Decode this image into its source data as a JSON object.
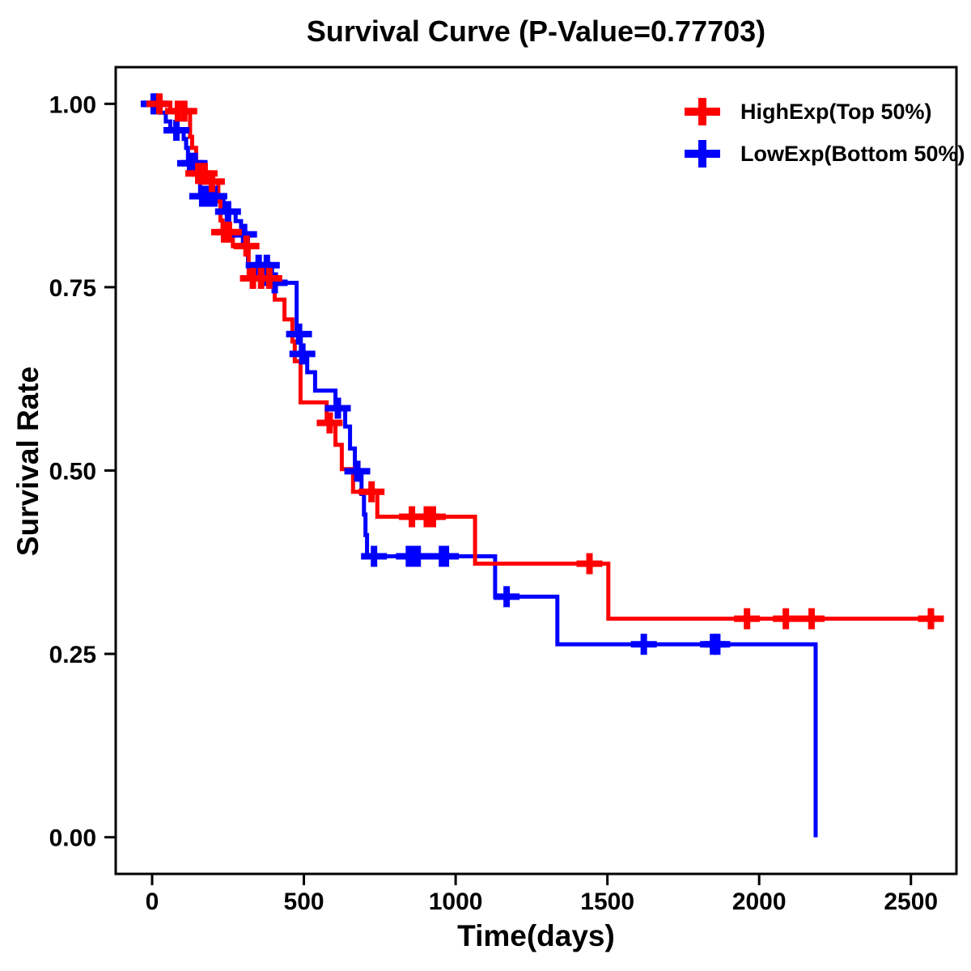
{
  "title": "Survival Curve (P-Value=0.77703)",
  "axes": {
    "x": {
      "label": "Time(days)",
      "tick_labels": [
        "0",
        "500",
        "1000",
        "1500",
        "2000",
        "2500"
      ],
      "tick_values": [
        0,
        500,
        1000,
        1500,
        2000,
        2500
      ]
    },
    "y": {
      "label": "Survival Rate",
      "tick_labels": [
        "0.00",
        "0.25",
        "0.50",
        "0.75",
        "1.00"
      ],
      "tick_values": [
        0.0,
        0.25,
        0.5,
        0.75,
        1.0
      ]
    }
  },
  "legend": {
    "items": [
      {
        "label": "HighExp(Top 50%)",
        "color": "#FF0000",
        "marker": "plus-icon"
      },
      {
        "label": "LowExp(Bottom 50%)",
        "color": "#0000FF",
        "marker": "plus-icon"
      }
    ]
  },
  "colors": {
    "background": "#FFFFFF",
    "axis": "#000000",
    "high_exp": "#FF0000",
    "low_exp": "#0000FF"
  },
  "chart_data": {
    "type": "line",
    "subtype": "kaplan-meier-survival-step",
    "title": "Survival Curve (P-Value=0.77703)",
    "p_value": 0.77703,
    "xlabel": "Time(days)",
    "ylabel": "Survival Rate",
    "xlim": [
      -120,
      2650
    ],
    "ylim": [
      -0.05,
      1.05
    ],
    "x_ticks": [
      0,
      500,
      1000,
      1500,
      2000,
      2500
    ],
    "y_ticks": [
      0.0,
      0.25,
      0.5,
      0.75,
      1.0
    ],
    "grid": false,
    "legend_position": "top-right-inside",
    "series": [
      {
        "name": "HighExp(Top 50%)",
        "color": "#FF0000",
        "steps": [
          [
            0,
            1.0
          ],
          [
            60,
            0.99
          ],
          [
            125,
            0.955
          ],
          [
            132,
            0.94
          ],
          [
            145,
            0.905
          ],
          [
            185,
            0.894
          ],
          [
            218,
            0.867
          ],
          [
            225,
            0.841
          ],
          [
            232,
            0.825
          ],
          [
            266,
            0.806
          ],
          [
            318,
            0.762
          ],
          [
            404,
            0.733
          ],
          [
            436,
            0.706
          ],
          [
            462,
            0.676
          ],
          [
            470,
            0.649
          ],
          [
            489,
            0.593
          ],
          [
            575,
            0.565
          ],
          [
            604,
            0.535
          ],
          [
            625,
            0.502
          ],
          [
            662,
            0.471
          ],
          [
            742,
            0.437
          ],
          [
            1064,
            0.373
          ],
          [
            1503,
            0.298
          ]
        ],
        "end_time": 2580,
        "censor_marks": [
          [
            24,
            1.0
          ],
          [
            85,
            0.99
          ],
          [
            106,
            0.99
          ],
          [
            152,
            0.905
          ],
          [
            173,
            0.905
          ],
          [
            197,
            0.894
          ],
          [
            237,
            0.825
          ],
          [
            253,
            0.825
          ],
          [
            311,
            0.806
          ],
          [
            332,
            0.762
          ],
          [
            359,
            0.762
          ],
          [
            386,
            0.762
          ],
          [
            585,
            0.565
          ],
          [
            723,
            0.471
          ],
          [
            856,
            0.437
          ],
          [
            905,
            0.437
          ],
          [
            925,
            0.437
          ],
          [
            1441,
            0.373
          ],
          [
            1960,
            0.298
          ],
          [
            2088,
            0.298
          ],
          [
            2173,
            0.298
          ],
          [
            2566,
            0.298
          ]
        ]
      },
      {
        "name": "LowExp(Bottom 50%)",
        "color": "#0000FF",
        "steps": [
          [
            0,
            1.0
          ],
          [
            27,
            0.988
          ],
          [
            45,
            0.976
          ],
          [
            60,
            0.964
          ],
          [
            104,
            0.952
          ],
          [
            112,
            0.94
          ],
          [
            118,
            0.919
          ],
          [
            150,
            0.897
          ],
          [
            158,
            0.874
          ],
          [
            235,
            0.853
          ],
          [
            275,
            0.84
          ],
          [
            293,
            0.822
          ],
          [
            316,
            0.78
          ],
          [
            395,
            0.756
          ],
          [
            476,
            0.686
          ],
          [
            490,
            0.659
          ],
          [
            511,
            0.634
          ],
          [
            537,
            0.609
          ],
          [
            604,
            0.585
          ],
          [
            636,
            0.56
          ],
          [
            652,
            0.53
          ],
          [
            668,
            0.499
          ],
          [
            690,
            0.468
          ],
          [
            698,
            0.44
          ],
          [
            703,
            0.412
          ],
          [
            708,
            0.383
          ],
          [
            1130,
            0.328
          ],
          [
            1335,
            0.263
          ],
          [
            2186,
            0.0
          ]
        ],
        "end_time": 2186,
        "censor_marks": [
          [
            5,
            1.0
          ],
          [
            11,
            1.0
          ],
          [
            80,
            0.964
          ],
          [
            125,
            0.919
          ],
          [
            140,
            0.919
          ],
          [
            165,
            0.874
          ],
          [
            185,
            0.874
          ],
          [
            205,
            0.874
          ],
          [
            250,
            0.853
          ],
          [
            303,
            0.822
          ],
          [
            351,
            0.78
          ],
          [
            378,
            0.78
          ],
          [
            404,
            0.756
          ],
          [
            484,
            0.686
          ],
          [
            495,
            0.659
          ],
          [
            612,
            0.585
          ],
          [
            676,
            0.499
          ],
          [
            731,
            0.383
          ],
          [
            846,
            0.383
          ],
          [
            861,
            0.383
          ],
          [
            875,
            0.383
          ],
          [
            955,
            0.383
          ],
          [
            968,
            0.383
          ],
          [
            1168,
            0.328
          ],
          [
            1620,
            0.263
          ],
          [
            1848,
            0.263
          ],
          [
            1862,
            0.263
          ]
        ]
      }
    ]
  }
}
